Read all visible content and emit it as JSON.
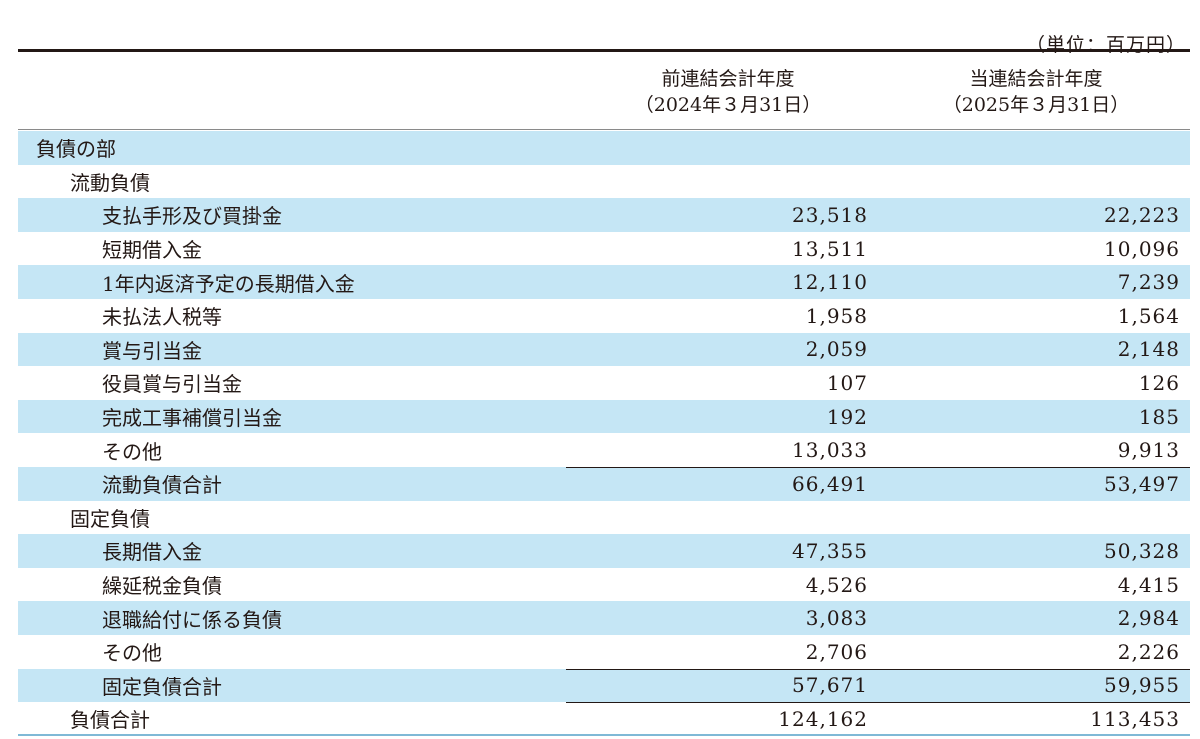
{
  "unit_label": "（単位：百万円）",
  "columns": {
    "prev": {
      "title": "前連結会計年度",
      "date": "（2024年３月31日）"
    },
    "curr": {
      "title": "当連結会計年度",
      "date": "（2025年３月31日）"
    }
  },
  "rows": [
    {
      "label": "負債の部",
      "prev": "",
      "curr": ""
    },
    {
      "label": "流動負債",
      "prev": "",
      "curr": ""
    },
    {
      "label": "支払手形及び買掛金",
      "prev": "23,518",
      "curr": "22,223"
    },
    {
      "label": "短期借入金",
      "prev": "13,511",
      "curr": "10,096"
    },
    {
      "label": "1年内返済予定の長期借入金",
      "prev": "12,110",
      "curr": "7,239"
    },
    {
      "label": "未払法人税等",
      "prev": "1,958",
      "curr": "1,564"
    },
    {
      "label": "賞与引当金",
      "prev": "2,059",
      "curr": "2,148"
    },
    {
      "label": "役員賞与引当金",
      "prev": "107",
      "curr": "126"
    },
    {
      "label": "完成工事補償引当金",
      "prev": "192",
      "curr": "185"
    },
    {
      "label": "その他",
      "prev": "13,033",
      "curr": "9,913"
    },
    {
      "label": "流動負債合計",
      "prev": "66,491",
      "curr": "53,497"
    },
    {
      "label": "固定負債",
      "prev": "",
      "curr": ""
    },
    {
      "label": "長期借入金",
      "prev": "47,355",
      "curr": "50,328"
    },
    {
      "label": "繰延税金負債",
      "prev": "4,526",
      "curr": "4,415"
    },
    {
      "label": "退職給付に係る負債",
      "prev": "3,083",
      "curr": "2,984"
    },
    {
      "label": "その他",
      "prev": "2,706",
      "curr": "2,226"
    },
    {
      "label": "固定負債合計",
      "prev": "57,671",
      "curr": "59,955"
    },
    {
      "label": "負債合計",
      "prev": "124,162",
      "curr": "113,453"
    }
  ]
}
